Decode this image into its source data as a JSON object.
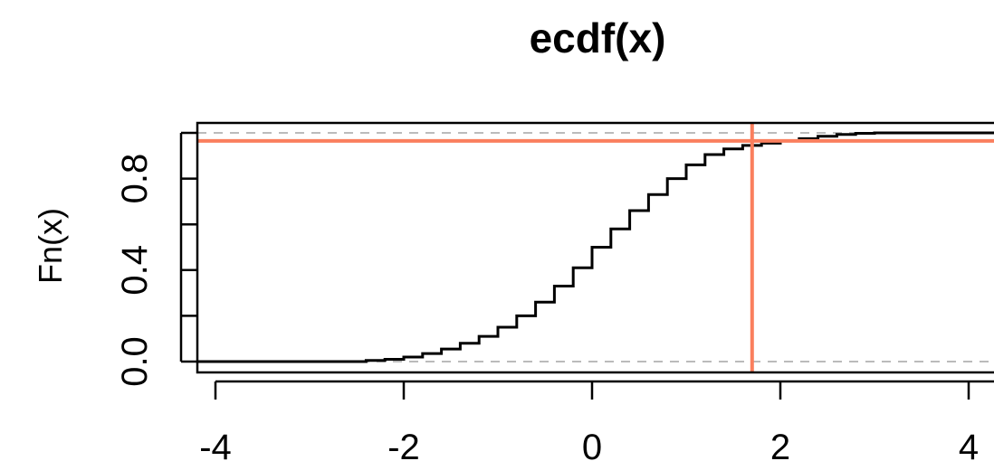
{
  "chart_data": {
    "type": "line",
    "title": "ecdf(x)",
    "xlabel": "",
    "ylabel": "Fn(x)",
    "xlim": [
      -4.3,
      4.3
    ],
    "ylim": [
      -0.04,
      1.04
    ],
    "x_ticks": [
      -4,
      -2,
      0,
      2,
      4
    ],
    "x_tick_labels": [
      "-4",
      "-2",
      "0",
      "2",
      "4"
    ],
    "y_ticks": [
      0.0,
      0.2,
      0.4,
      0.6,
      0.8,
      1.0
    ],
    "y_tick_labels": [
      {
        "value": 0.0,
        "label": "0.0"
      },
      {
        "value": 0.4,
        "label": "0.4"
      },
      {
        "value": 0.8,
        "label": "0.8"
      }
    ],
    "series": [
      {
        "color": "#000000",
        "step": true,
        "x": [
          -2.6,
          -2.4,
          -2.2,
          -2.0,
          -1.8,
          -1.6,
          -1.4,
          -1.2,
          -1.0,
          -0.8,
          -0.6,
          -0.4,
          -0.2,
          0.0,
          0.2,
          0.4,
          0.6,
          0.8,
          1.0,
          1.2,
          1.4,
          1.6,
          1.8,
          2.0,
          2.2,
          2.4,
          2.6,
          2.8,
          3.0
        ],
        "y": [
          0.0,
          0.005,
          0.01,
          0.02,
          0.035,
          0.055,
          0.08,
          0.11,
          0.15,
          0.2,
          0.26,
          0.33,
          0.41,
          0.5,
          0.58,
          0.66,
          0.73,
          0.8,
          0.86,
          0.905,
          0.93,
          0.945,
          0.955,
          0.965,
          0.975,
          0.985,
          0.993,
          0.998,
          1.0
        ]
      }
    ],
    "reference_lines": {
      "horizontal_dashed": [
        0,
        1
      ],
      "dashed_color": "#bbbbbb",
      "highlight_color": "#fa7f5e",
      "highlight_vertical_x": 1.7,
      "highlight_horizontal_y": 0.965
    }
  }
}
